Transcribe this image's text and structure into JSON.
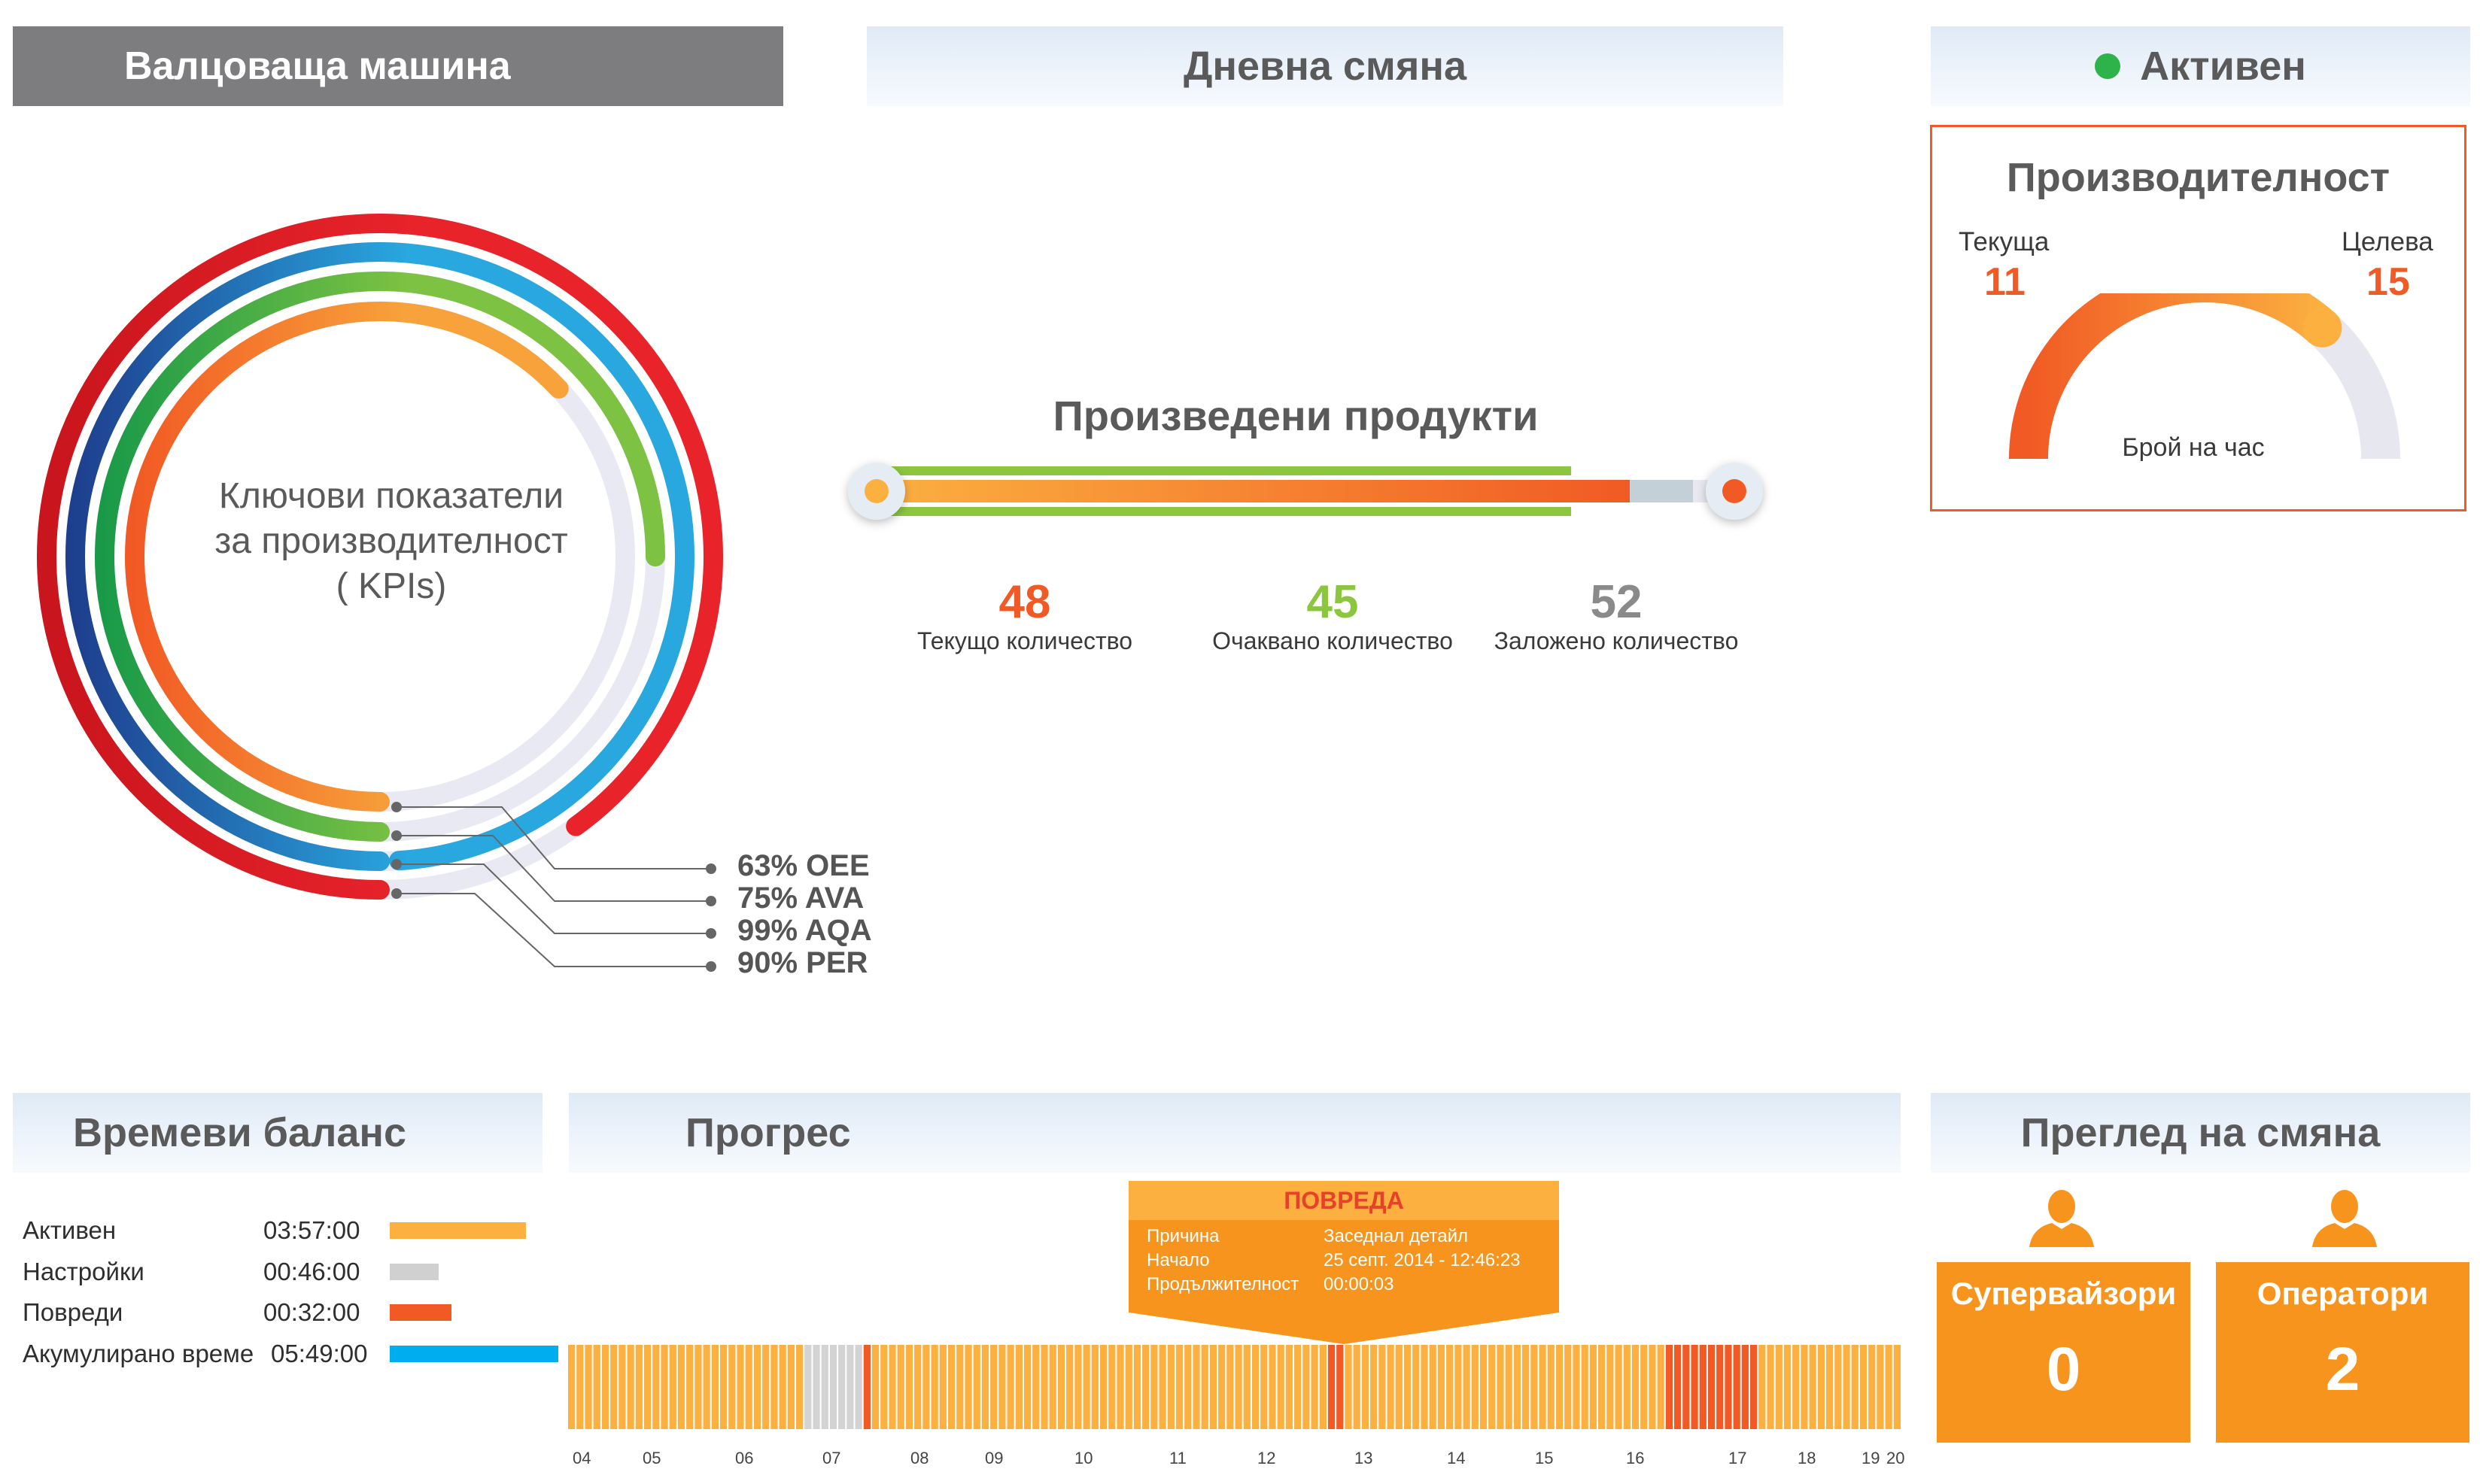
{
  "header": {
    "machine": "Валцоваща машина",
    "shift": "Дневна  смяна",
    "status": "Активен",
    "status_color": "#2eb34a"
  },
  "kpi": {
    "title_line1": "Ключови показатели",
    "title_line2": "за производителност",
    "title_line3": "( KPIs)",
    "items": [
      {
        "label": "63% OEE",
        "value": 63,
        "color": "#f7a23a"
      },
      {
        "label": "75% AVA",
        "value": 75,
        "color": "#7dc242"
      },
      {
        "label": "99% AQA",
        "value": 99,
        "color": "#29a8e0"
      },
      {
        "label": "90% PER",
        "value": 90,
        "color": "#e8232a"
      }
    ]
  },
  "products": {
    "title": "Произведени продукти",
    "current": {
      "value": "48",
      "label": "Текущо количество",
      "color": "#f15a24"
    },
    "expected": {
      "value": "45",
      "label": "Очаквано количество",
      "color": "#8cc63f"
    },
    "planned": {
      "value": "52",
      "label": "Заложено количество",
      "color": "#8a8a8a"
    }
  },
  "performance": {
    "title": "Производителност",
    "current_label": "Текуща",
    "current_value": "11",
    "target_label": "Целева",
    "target_value": "15",
    "gauge_label": "Брой на час",
    "gauge_fraction": 0.733
  },
  "time_balance": {
    "title": "Времеви баланс",
    "rows": [
      {
        "label": "Активен",
        "time": "03:57:00",
        "color": "#fbb040"
      },
      {
        "label": "Настройки",
        "time": "00:46:00",
        "color": "#d0d0d0"
      },
      {
        "label": "Повреди",
        "time": "00:32:00",
        "color": "#f15a24"
      },
      {
        "label": "Акумулирано време",
        "time": "05:49:00",
        "color": "#00aeef"
      }
    ]
  },
  "progress": {
    "title": "Прогрес",
    "tooltip": {
      "title": "ПОВРЕДА",
      "reason_label": "Причина",
      "reason_value": "Заседнал детайл",
      "start_label": "Начало",
      "start_value": "25 септ. 2014 - 12:46:23",
      "duration_label": "Продължителност",
      "duration_value": "00:00:03"
    },
    "hours": [
      "04",
      "05",
      "06",
      "07",
      "08",
      "09",
      "10",
      "11",
      "12",
      "13",
      "14",
      "15",
      "16",
      "17",
      "18",
      "19",
      "20"
    ]
  },
  "shift_overview": {
    "title": "Преглед на смяна",
    "supervisors_label": "Супервайзори",
    "supervisors_value": "0",
    "operators_label": "Оператори",
    "operators_value": "2"
  }
}
